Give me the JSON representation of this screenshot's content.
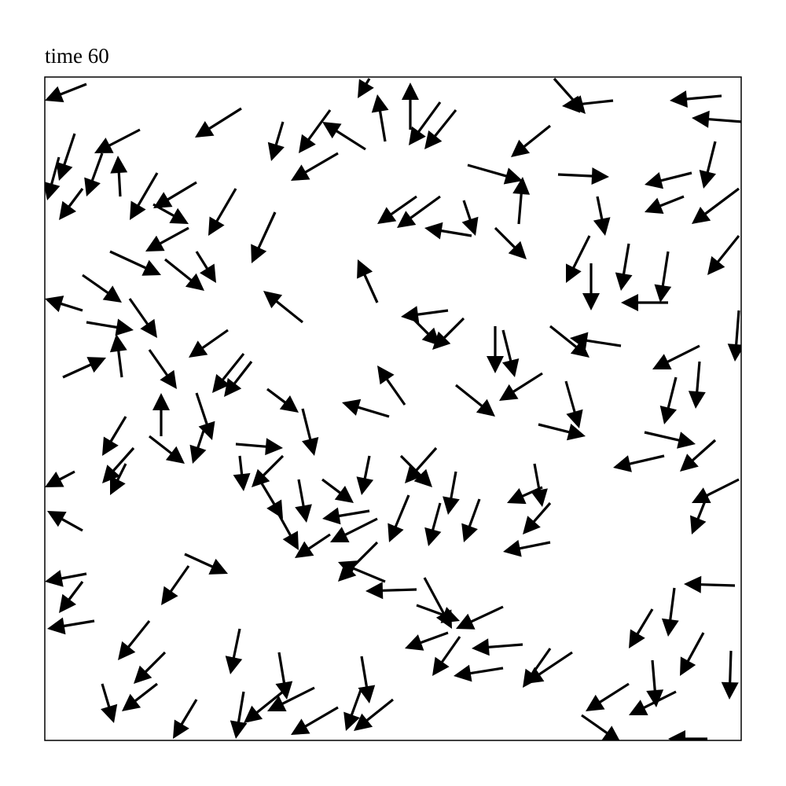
{
  "chart_data": {
    "type": "quiver",
    "title": "time 60",
    "color": "#000000",
    "xlim": [
      0,
      886
    ],
    "ylim": [
      0,
      844
    ],
    "x": [
      53,
      250,
      121,
      38,
      73,
      96,
      143,
      193,
      243,
      293,
      303,
      373,
      363,
      408,
      413,
      433,
      465,
      503,
      523,
      538,
      603,
      643,
      648,
      723,
      861,
      888,
      653,
      703,
      693,
      695,
      743,
      823,
      853,
      883,
      883,
      793,
      793,
      813,
      883,
      733,
      643,
      833,
      833,
      803,
      763,
      788,
      853,
      883,
      843,
      878,
      801,
      773,
      838,
      873,
      803,
      743,
      773,
      843,
      683,
      671,
      643,
      583,
      608,
      583,
      528,
      483,
      473,
      473,
      513,
      433,
      423,
      423,
      643,
      643,
      633,
      623,
      553,
      523,
      503,
      463,
      453,
      498,
      413,
      353,
      323,
      298,
      363,
      413,
      243,
      248,
      303,
      273,
      283,
      328,
      193,
      148,
      133,
      203,
      103,
      113,
      103,
      38,
      48,
      53,
      48,
      63,
      183,
      178,
      133,
      153,
      143,
      73,
      193,
      248,
      298,
      343,
      373,
      403,
      443,
      403,
      253,
      303,
      328,
      233,
      253,
      263,
      438,
      458,
      423,
      533,
      513,
      463,
      633,
      523,
      663,
      628,
      573,
      583,
      473,
      503,
      543,
      533,
      573,
      48,
      48,
      23,
      53,
      98,
      133,
      108,
      83,
      153,
      193,
      183,
      138,
      18,
      48
    ],
    "y": [
      835,
      804,
      777,
      772,
      747,
      692,
      722,
      710,
      702,
      672,
      787,
      747,
      802,
      752,
      842,
      762,
      777,
      812,
      802,
      732,
      657,
      782,
      842,
      814,
      820,
      787,
      720,
      692,
      642,
      607,
      632,
      722,
      762,
      702,
      642,
      622,
      557,
      692,
      547,
      502,
      527,
      502,
      482,
      462,
      392,
      362,
      382,
      332,
      312,
      197,
      194,
      167,
      137,
      114,
      62,
      72,
      102,
      2,
      32,
      112,
      117,
      92,
      122,
      170,
      132,
      207,
      172,
      192,
      137,
      202,
      252,
      282,
      252,
      302,
      322,
      352,
      307,
      342,
      302,
      312,
      362,
      372,
      362,
      332,
      332,
      287,
      262,
      292,
      377,
      362,
      362,
      332,
      447,
      422,
      442,
      387,
      387,
      397,
      412,
      372,
      352,
      342,
      267,
      212,
      202,
      152,
      222,
      237,
      152,
      112,
      72,
      72,
      52,
      142,
      112,
      67,
      42,
      67,
      52,
      107,
      62,
      62,
      532,
      522,
      492,
      482,
      412,
      427,
      557,
      537,
      547,
      542,
      467,
      452,
      457,
      402,
      527,
      522,
      692,
      692,
      642,
      687,
      652,
      592,
      547,
      462,
      532,
      462,
      497,
      562,
      622,
      612,
      622,
      652,
      682,
      742,
      702
    ],
    "u": [
      -53,
      -59,
      -58,
      -20,
      -20,
      -3,
      -35,
      -55,
      -35,
      -30,
      -15,
      -60,
      -40,
      -55,
      -15,
      -10,
      0,
      -40,
      -40,
      70,
      5,
      -50,
      40,
      -65,
      -66,
      -65,
      65,
      10,
      -30,
      0,
      -10,
      -60,
      -15,
      -60,
      -40,
      -10,
      -60,
      -50,
      -5,
      -65,
      50,
      -60,
      -5,
      -15,
      65,
      -65,
      -45,
      -60,
      -20,
      -65,
      -8,
      -30,
      -30,
      -2,
      -60,
      -55,
      5,
      -50,
      50,
      -60,
      -35,
      -63,
      -65,
      -60,
      -35,
      35,
      55,
      -65,
      -55,
      -60,
      -50,
      -60,
      -60,
      -35,
      -45,
      10,
      -20,
      -10,
      -15,
      -25,
      40,
      -40,
      -10,
      40,
      10,
      25,
      -45,
      -60,
      60,
      5,
      -40,
      30,
      40,
      15,
      20,
      0,
      45,
      -15,
      -30,
      -40,
      -20,
      -38,
      -45,
      -53,
      -30,
      -60,
      -35,
      55,
      -40,
      -40,
      -45,
      15,
      -30,
      -12,
      10,
      -60,
      -60,
      -20,
      -50,
      10,
      -10,
      -50,
      -50,
      -50,
      -40,
      -35,
      -60,
      -35,
      -25,
      -40,
      -60,
      40,
      -55,
      50,
      17,
      60,
      0,
      15,
      -50,
      -55,
      -60,
      15,
      40,
      50,
      -48,
      55,
      60,
      -7,
      35,
      35,
      65,
      50,
      25,
      -55,
      45,
      -15,
      -30
    ],
    "v": [
      -21,
      -37,
      -30,
      -60,
      -55,
      52,
      -60,
      -33,
      -60,
      -65,
      -50,
      -35,
      -55,
      35,
      -25,
      60,
      60,
      -55,
      -50,
      -20,
      60,
      -40,
      -45,
      -7,
      -6,
      5,
      -3,
      -50,
      -60,
      -60,
      -60,
      -15,
      -60,
      -45,
      -50,
      -65,
      0,
      -20,
      -65,
      10,
      -40,
      -30,
      -60,
      -60,
      -15,
      -15,
      -40,
      -30,
      -50,
      2,
      -62,
      -50,
      -55,
      -62,
      -30,
      -35,
      -60,
      0,
      -35,
      -40,
      -50,
      -10,
      -5,
      -28,
      -50,
      -65,
      -20,
      -2,
      -20,
      25,
      -50,
      -30,
      -12,
      -40,
      -20,
      -55,
      -55,
      -55,
      -55,
      -60,
      -40,
      -45,
      -50,
      -30,
      -55,
      -45,
      -30,
      -10,
      -5,
      -45,
      -40,
      -50,
      -30,
      -60,
      -60,
      55,
      -35,
      -45,
      -50,
      -45,
      -40,
      -20,
      25,
      -10,
      -40,
      -10,
      -50,
      -25,
      -50,
      -40,
      -35,
      -50,
      -50,
      -58,
      -60,
      -30,
      -35,
      -55,
      -40,
      -60,
      -60,
      -40,
      40,
      -35,
      -50,
      -45,
      18,
      50,
      55,
      -40,
      -8,
      -40,
      -35,
      -40,
      -60,
      -15,
      -60,
      -60,
      -35,
      -40,
      10,
      -45,
      -40,
      -35,
      15,
      25,
      -10,
      55,
      -50,
      -50,
      -30,
      -40,
      -40,
      -30,
      -25,
      -55,
      -40
    ]
  }
}
